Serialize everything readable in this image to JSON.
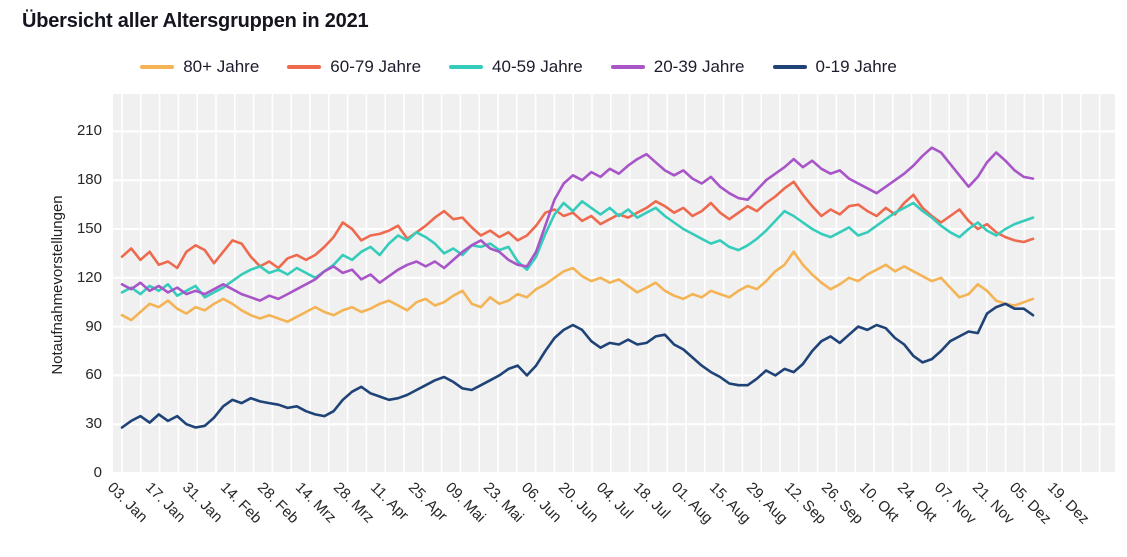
{
  "header": {
    "title": "Übersicht aller Altersgruppen in 2021"
  },
  "axes": {
    "y_label": "Notaufnahmevorstellungen",
    "y_ticks": [
      0,
      30,
      60,
      90,
      120,
      150,
      180,
      210
    ]
  },
  "colors": {
    "plot_background": "#f0f0f0",
    "gridline": "#ffffff",
    "text": "#262626",
    "title_text": "#15151f"
  },
  "chart_data": {
    "type": "line",
    "title": "Übersicht aller Altersgruppen in 2021",
    "ylabel": "Notaufnahmevorstellungen",
    "ylim": [
      0,
      232
    ],
    "grid": true,
    "legend_position": "top",
    "x_tick_labels": [
      "03. Jan",
      "17. Jan",
      "31. Jan",
      "14. Feb",
      "28. Feb",
      "14. Mrz",
      "28. Mrz",
      "11. Apr",
      "25. Apr",
      "09. Mai",
      "23. Mai",
      "06. Jun",
      "20. Jun",
      "04. Jul",
      "18. Jul",
      "01. Aug",
      "15. Aug",
      "29. Aug",
      "12. Sep",
      "26. Sep",
      "10. Okt",
      "24. Okt",
      "07. Nov",
      "21. Nov",
      "05. Dez",
      "19. Dez"
    ],
    "x_note": "data points span 03. Jan through ~05. Dez 2021, sampled about every 3.4 days",
    "series": [
      {
        "name": "80+ Jahre",
        "color": "#F4B456",
        "values": [
          97,
          94,
          99,
          104,
          102,
          106,
          101,
          98,
          102,
          100,
          104,
          107,
          104,
          100,
          97,
          95,
          97,
          95,
          93,
          96,
          99,
          102,
          99,
          97,
          100,
          102,
          99,
          101,
          104,
          106,
          103,
          100,
          105,
          107,
          103,
          105,
          109,
          112,
          104,
          102,
          108,
          104,
          106,
          110,
          108,
          113,
          116,
          120,
          124,
          126,
          121,
          118,
          120,
          117,
          119,
          115,
          111,
          114,
          117,
          112,
          109,
          107,
          110,
          108,
          112,
          110,
          108,
          112,
          115,
          113,
          118,
          124,
          128,
          136,
          128,
          122,
          117,
          113,
          116,
          120,
          118,
          122,
          125,
          128,
          124,
          127,
          124,
          121,
          118,
          120,
          114,
          108,
          110,
          116,
          112,
          106,
          104,
          103,
          105,
          107
        ]
      },
      {
        "name": "60-79 Jahre",
        "color": "#EE6A4F",
        "values": [
          133,
          138,
          131,
          136,
          128,
          130,
          126,
          136,
          140,
          137,
          129,
          136,
          143,
          141,
          133,
          127,
          130,
          126,
          132,
          134,
          131,
          134,
          139,
          145,
          154,
          150,
          143,
          146,
          147,
          149,
          152,
          144,
          148,
          152,
          157,
          161,
          156,
          157,
          151,
          146,
          149,
          145,
          148,
          143,
          146,
          152,
          160,
          162,
          158,
          160,
          155,
          158,
          153,
          156,
          159,
          157,
          160,
          163,
          167,
          164,
          160,
          163,
          158,
          161,
          166,
          160,
          156,
          160,
          164,
          161,
          166,
          170,
          175,
          179,
          171,
          164,
          158,
          162,
          159,
          164,
          165,
          161,
          158,
          163,
          159,
          166,
          171,
          163,
          158,
          154,
          158,
          162,
          155,
          150,
          153,
          148,
          145,
          143,
          142,
          144
        ]
      },
      {
        "name": "40-59 Jahre",
        "color": "#35CCBC",
        "values": [
          111,
          114,
          110,
          115,
          112,
          116,
          109,
          112,
          115,
          108,
          111,
          114,
          118,
          122,
          125,
          127,
          123,
          125,
          122,
          126,
          123,
          120,
          124,
          128,
          134,
          131,
          136,
          139,
          134,
          141,
          146,
          143,
          148,
          145,
          141,
          135,
          138,
          134,
          140,
          139,
          141,
          137,
          139,
          130,
          125,
          133,
          147,
          159,
          166,
          161,
          167,
          163,
          159,
          163,
          158,
          162,
          157,
          160,
          163,
          158,
          154,
          150,
          147,
          144,
          141,
          143,
          139,
          137,
          140,
          144,
          149,
          155,
          161,
          158,
          154,
          150,
          147,
          145,
          148,
          151,
          146,
          148,
          152,
          156,
          160,
          163,
          166,
          161,
          157,
          152,
          148,
          145,
          150,
          154,
          149,
          146,
          150,
          153,
          155,
          157
        ]
      },
      {
        "name": "20-39 Jahre",
        "color": "#A855C8",
        "values": [
          116,
          113,
          117,
          112,
          115,
          111,
          114,
          110,
          112,
          110,
          113,
          116,
          113,
          110,
          108,
          106,
          109,
          107,
          110,
          113,
          116,
          119,
          124,
          127,
          123,
          125,
          119,
          122,
          117,
          121,
          125,
          128,
          130,
          127,
          130,
          126,
          131,
          136,
          140,
          143,
          138,
          136,
          131,
          128,
          127,
          136,
          152,
          168,
          178,
          183,
          180,
          185,
          182,
          187,
          184,
          189,
          193,
          196,
          191,
          186,
          183,
          186,
          181,
          178,
          182,
          176,
          172,
          169,
          168,
          174,
          180,
          184,
          188,
          193,
          188,
          192,
          187,
          184,
          186,
          181,
          178,
          175,
          172,
          176,
          180,
          184,
          189,
          195,
          200,
          197,
          190,
          183,
          176,
          182,
          191,
          197,
          192,
          186,
          182,
          181
        ]
      },
      {
        "name": "0-19 Jahre",
        "color": "#1F4277",
        "values": [
          28,
          32,
          35,
          31,
          36,
          32,
          35,
          30,
          28,
          29,
          34,
          41,
          45,
          43,
          46,
          44,
          43,
          42,
          40,
          41,
          38,
          36,
          35,
          38,
          45,
          50,
          53,
          49,
          47,
          45,
          46,
          48,
          51,
          54,
          57,
          59,
          56,
          52,
          51,
          54,
          57,
          60,
          64,
          66,
          60,
          66,
          75,
          83,
          88,
          91,
          88,
          81,
          77,
          80,
          79,
          82,
          79,
          80,
          84,
          85,
          79,
          76,
          71,
          66,
          62,
          59,
          55,
          54,
          54,
          58,
          63,
          60,
          64,
          62,
          67,
          75,
          81,
          84,
          80,
          85,
          90,
          88,
          91,
          89,
          83,
          79,
          72,
          68,
          70,
          75,
          81,
          84,
          87,
          86,
          98,
          102,
          104,
          101,
          101,
          97
        ]
      }
    ]
  }
}
